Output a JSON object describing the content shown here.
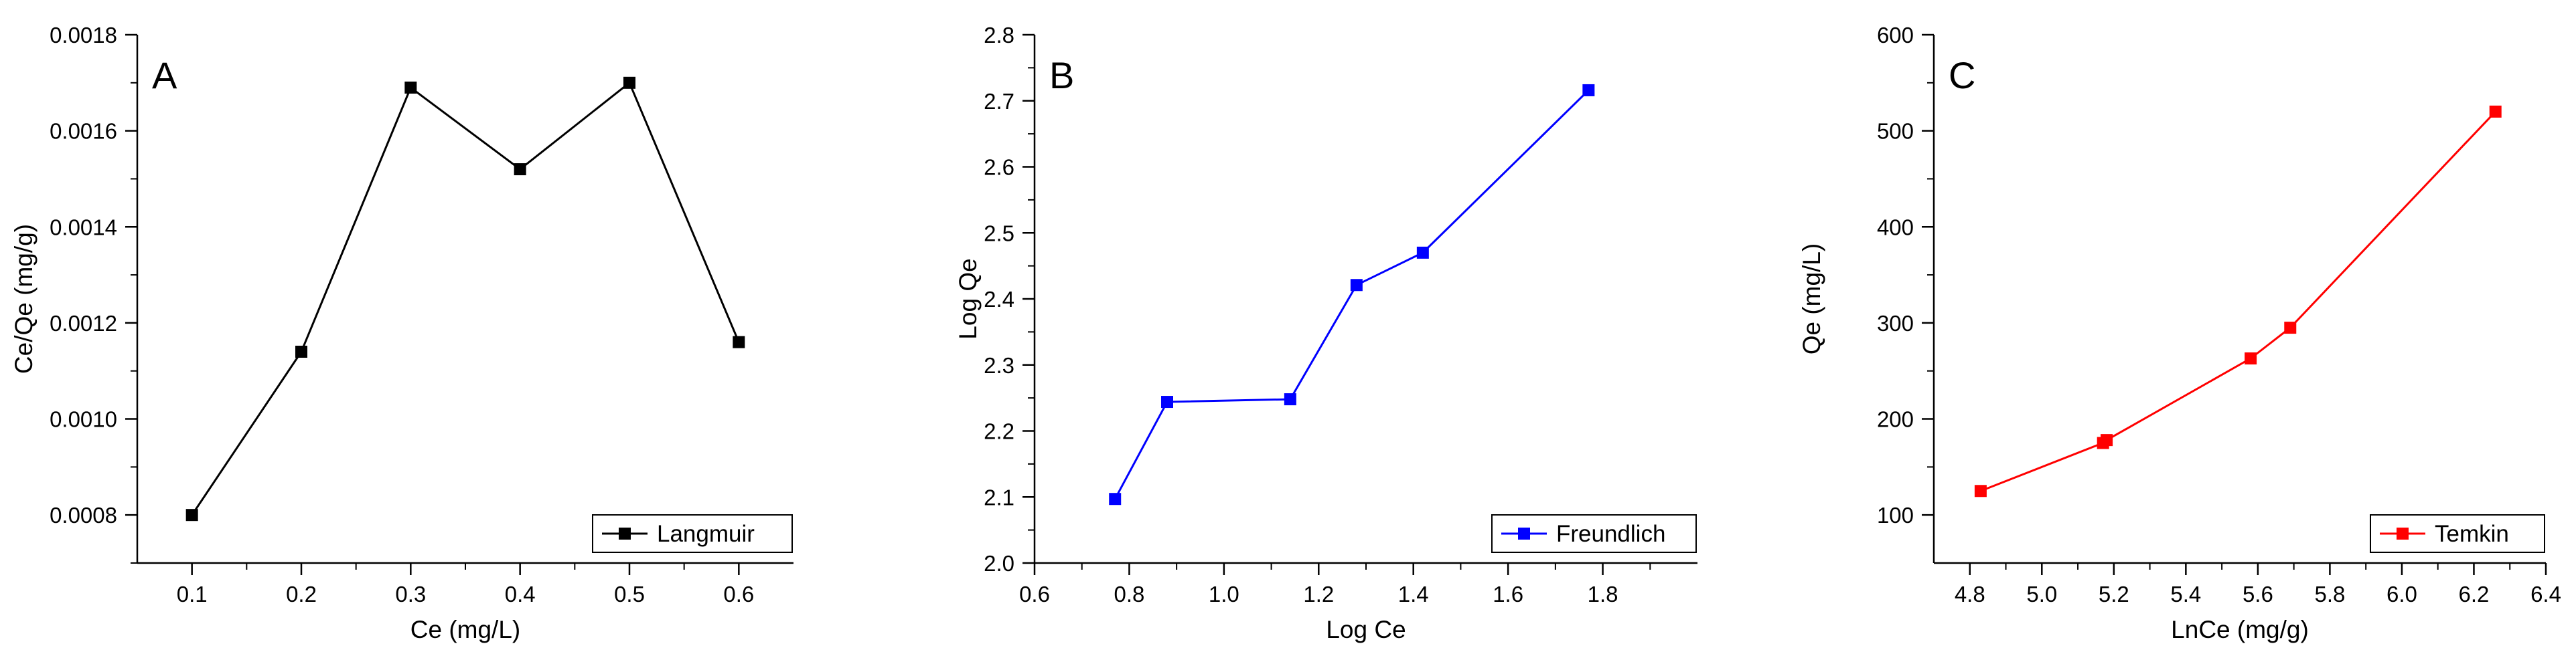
{
  "figure": {
    "panels": [
      "A",
      "B",
      "C"
    ]
  },
  "chart_data": [
    {
      "panel_label": "A",
      "type": "line",
      "title": "",
      "xlabel": "Ce (mg/L)",
      "ylabel": "Ce/Qe (mg/g)",
      "xlim": [
        0.05,
        0.65
      ],
      "ylim": [
        0.0007,
        0.0018
      ],
      "xticks": [
        0.1,
        0.2,
        0.3,
        0.4,
        0.5,
        0.6
      ],
      "xtick_labels": [
        "0.1",
        "0.2",
        "0.3",
        "0.4",
        "0.5",
        "0.6"
      ],
      "yticks": [
        0.0008,
        0.001,
        0.0012,
        0.0014,
        0.0016,
        0.0018
      ],
      "ytick_labels": [
        "0.0008",
        "0.0010",
        "0.0012",
        "0.0014",
        "0.0016",
        "0.0018"
      ],
      "grid": false,
      "legend_position": "bottom-right",
      "series": [
        {
          "name": "Langmuir",
          "color": "#000000",
          "marker": "square",
          "x": [
            0.1,
            0.2,
            0.3,
            0.4,
            0.5,
            0.6
          ],
          "y": [
            0.0008,
            0.00114,
            0.00169,
            0.00152,
            0.0017,
            0.00116
          ]
        }
      ]
    },
    {
      "panel_label": "B",
      "type": "line",
      "title": "",
      "xlabel": "Log Ce",
      "ylabel": "Log Qe",
      "xlim": [
        0.6,
        2.0
      ],
      "ylim": [
        2.0,
        2.8
      ],
      "xticks": [
        0.6,
        0.8,
        1.0,
        1.2,
        1.4,
        1.6,
        1.8
      ],
      "xtick_labels": [
        "0.6",
        "0.8",
        "1.0",
        "1.2",
        "1.4",
        "1.6",
        "1.8"
      ],
      "yticks": [
        2.0,
        2.1,
        2.2,
        2.3,
        2.4,
        2.5,
        2.6,
        2.7,
        2.8
      ],
      "ytick_labels": [
        "2.0",
        "2.1",
        "2.2",
        "2.3",
        "2.4",
        "2.5",
        "2.6",
        "2.7",
        "2.8"
      ],
      "grid": false,
      "legend_position": "bottom-right",
      "series": [
        {
          "name": "Freundlich",
          "color": "#0000ff",
          "marker": "square",
          "x": [
            0.77,
            0.88,
            1.14,
            1.28,
            1.42,
            1.77
          ],
          "y": [
            2.097,
            2.244,
            2.248,
            2.421,
            2.47,
            2.716
          ]
        }
      ]
    },
    {
      "panel_label": "C",
      "type": "line",
      "title": "",
      "xlabel": "LnCe (mg/g)",
      "ylabel": "Qe (mg/L)",
      "xlim": [
        4.7,
        6.4
      ],
      "ylim": [
        50,
        600
      ],
      "xticks": [
        4.8,
        5.0,
        5.2,
        5.4,
        5.6,
        5.8,
        6.0,
        6.2,
        6.4
      ],
      "xtick_labels": [
        "4.8",
        "5.0",
        "5.2",
        "5.4",
        "5.6",
        "5.8",
        "6.0",
        "6.2",
        "6.4"
      ],
      "yticks": [
        100,
        200,
        300,
        400,
        500,
        600
      ],
      "ytick_labels": [
        "100",
        "200",
        "300",
        "400",
        "500",
        "600"
      ],
      "grid": false,
      "legend_position": "bottom-right",
      "series": [
        {
          "name": "Temkin",
          "color": "#ff0000",
          "marker": "square",
          "x": [
            4.83,
            5.17,
            5.18,
            5.58,
            5.69,
            6.26
          ],
          "y": [
            125,
            175,
            178,
            263,
            295,
            520
          ]
        }
      ]
    }
  ]
}
